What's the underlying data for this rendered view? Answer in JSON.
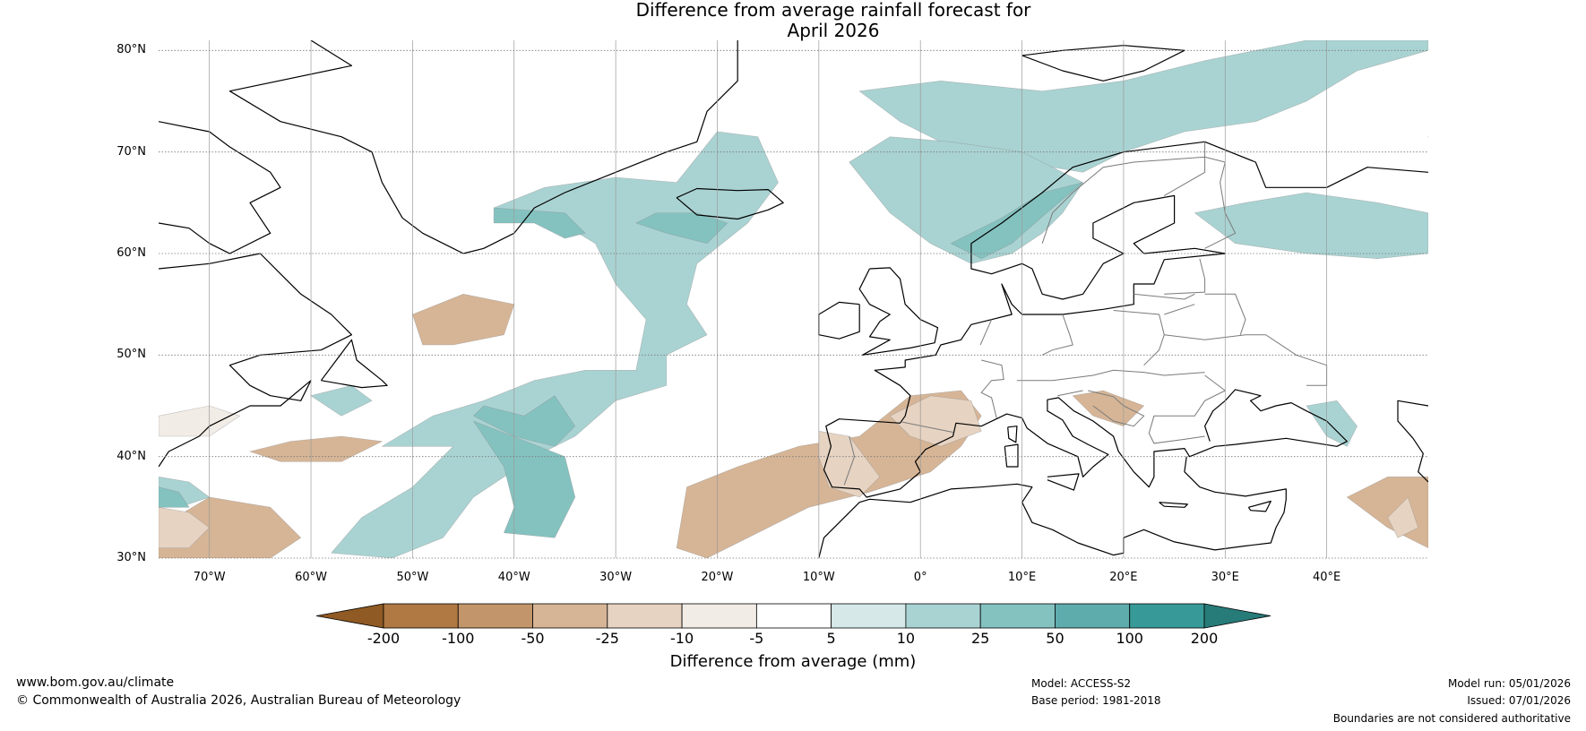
{
  "title": {
    "line1": "Difference from average rainfall forecast for",
    "line2": "April 2026"
  },
  "map": {
    "projection": "plate-carree",
    "lon_range": [
      -75,
      50
    ],
    "lat_range": [
      30,
      81
    ],
    "lat_labels": [
      "30°N",
      "40°N",
      "50°N",
      "60°N",
      "70°N",
      "80°N"
    ],
    "lon_labels": [
      "70°W",
      "60°W",
      "50°W",
      "40°W",
      "30°W",
      "20°W",
      "10°W",
      "0°",
      "10°E",
      "20°E",
      "30°E",
      "40°E"
    ]
  },
  "colorbar": {
    "title": "Difference from average (mm)",
    "tick_labels": [
      "-200",
      "-100",
      "-50",
      "-25",
      "-10",
      "-5",
      "5",
      "10",
      "25",
      "50",
      "100",
      "200"
    ],
    "colors": [
      "#8f5a23",
      "#b07842",
      "#c3956b",
      "#d6b596",
      "#e6d3c2",
      "#f2ece6",
      "#ffffff",
      "#d6e9e8",
      "#a9d3d2",
      "#84c2c0",
      "#5eadac",
      "#389a98",
      "#277b79"
    ]
  },
  "footer": {
    "website": "www.bom.gov.au/climate",
    "copyright": "© Commonwealth of Australia 2026, Australian Bureau of Meteorology",
    "model": "Model: ACCESS-S2",
    "base_period": "Base period: 1981-2018",
    "model_run": "Model run: 05/01/2026",
    "issued": "Issued: 07/01/2026",
    "disclaimer": "Boundaries are not considered authoritative"
  }
}
